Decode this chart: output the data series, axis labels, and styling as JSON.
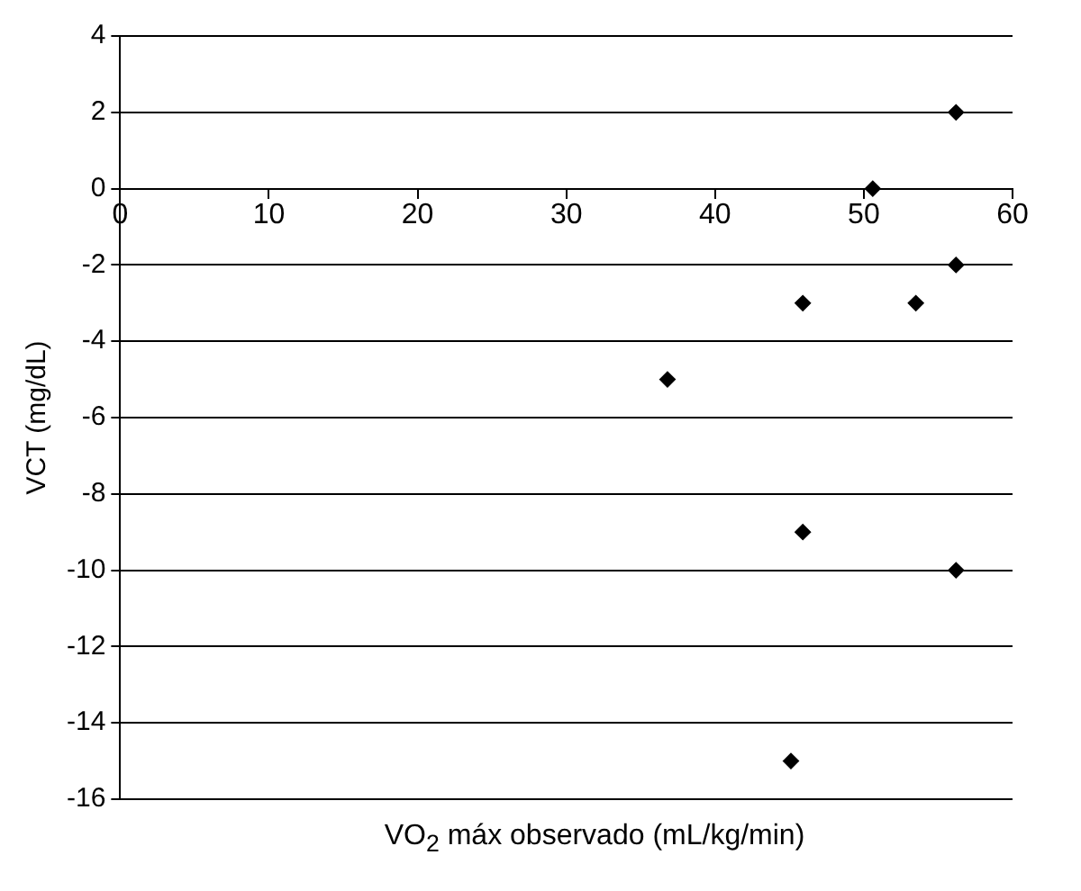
{
  "chart_data": {
    "type": "scatter",
    "xlabel": "VO$_{2}$ máx observado (mL/kg/min)",
    "ylabel": "VCT (mg/dL)",
    "x": [
      56.2,
      50.6,
      56.2,
      45.9,
      53.5,
      36.8,
      45.9,
      56.2,
      45.1
    ],
    "values": [
      2,
      0,
      -2,
      -3,
      -3,
      -5,
      -9,
      -10,
      -15
    ],
    "color": "#000000",
    "marker": "diamond",
    "xlim": [
      0,
      60
    ],
    "xticks": [
      0,
      10,
      20,
      30,
      40,
      50,
      60
    ],
    "ylim": [
      -16,
      4
    ],
    "yticks": [
      -16,
      -14,
      -12,
      -10,
      -8,
      -6,
      -4,
      -2,
      0,
      2,
      4
    ],
    "grid": "y",
    "legend": false
  }
}
